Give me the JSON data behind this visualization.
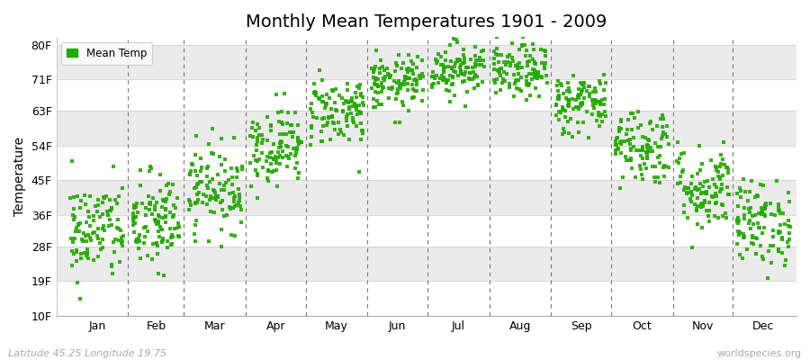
{
  "title": "Monthly Mean Temperatures 1901 - 2009",
  "ylabel": "Temperature",
  "xlabel_months": [
    "Jan",
    "Feb",
    "Mar",
    "Apr",
    "May",
    "Jun",
    "Jul",
    "Aug",
    "Sep",
    "Oct",
    "Nov",
    "Dec"
  ],
  "footer_left": "Latitude 45.25 Longitude 19.75",
  "footer_right": "worldspecies.org",
  "legend_label": "Mean Temp",
  "dot_color": "#22aa00",
  "background_color": "#ffffff",
  "band_color_light": "#ebebeb",
  "ytick_labels": [
    "10F",
    "19F",
    "28F",
    "36F",
    "45F",
    "54F",
    "63F",
    "71F",
    "80F"
  ],
  "ytick_values": [
    10,
    19,
    28,
    36,
    45,
    54,
    63,
    71,
    80
  ],
  "ylim": [
    10,
    82
  ],
  "xlim_days": [
    0,
    366
  ],
  "monthly_mean_f": [
    32,
    34,
    43,
    54,
    63,
    70,
    74,
    73,
    65,
    54,
    43,
    34
  ],
  "monthly_std_f": [
    6.5,
    6.5,
    5.5,
    5.0,
    4.5,
    3.5,
    3.5,
    3.5,
    4.0,
    5.0,
    5.5,
    5.5
  ],
  "n_years": 109,
  "seed": 42,
  "month_days": [
    31,
    28,
    31,
    30,
    31,
    30,
    31,
    31,
    30,
    31,
    30,
    31
  ],
  "month_starts": [
    0,
    31,
    59,
    90,
    120,
    151,
    181,
    212,
    243,
    273,
    304,
    334
  ]
}
